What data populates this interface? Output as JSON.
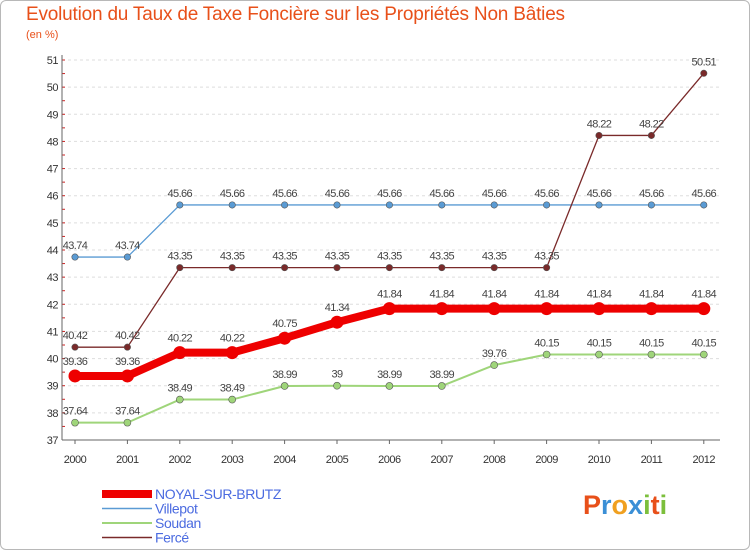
{
  "header": {
    "title": "Evolution du Taux de Taxe Foncière sur les Propriétés Non Bâties",
    "unit": "(en %)"
  },
  "logo": {
    "text": "Proxiti",
    "colors": [
      "#e8501a",
      "#3b8fd6",
      "#f0a020",
      "#3b8fd6",
      "#7cbf3c",
      "#e8501a",
      "#7cbf3c"
    ]
  },
  "chart_data": {
    "type": "line",
    "title": "Evolution du Taux de Taxe Foncière sur les Propriétés Non Bâties",
    "ylabel": "(en %)",
    "xlabel": "",
    "x": [
      "2000",
      "2001",
      "2002",
      "2003",
      "2004",
      "2005",
      "2006",
      "2007",
      "2008",
      "2009",
      "2010",
      "2011",
      "2012"
    ],
    "ylim": [
      37,
      51
    ],
    "yticks": [
      37,
      38,
      39,
      40,
      41,
      42,
      43,
      44,
      45,
      46,
      47,
      48,
      49,
      50,
      51
    ],
    "grid": "horizontal dashed",
    "legend_position": "bottom-left",
    "series": [
      {
        "name": "Villepot",
        "color": "#5a9bd4",
        "weight": "thin",
        "values": [
          43.74,
          43.74,
          45.66,
          45.66,
          45.66,
          45.66,
          45.66,
          45.66,
          45.66,
          45.66,
          45.66,
          45.66,
          45.66
        ],
        "labels": [
          "43.74",
          "43.74",
          "45.66",
          "45.66",
          "45.66",
          "45.66",
          "45.66",
          "45.66",
          "45.66",
          "45.66",
          "45.66",
          "45.66",
          "45.66"
        ]
      },
      {
        "name": "Soudan",
        "color": "#9fd57a",
        "weight": "medium",
        "values": [
          37.64,
          37.64,
          38.49,
          38.49,
          38.99,
          39,
          38.99,
          38.99,
          39.76,
          40.15,
          40.15,
          40.15,
          40.15
        ],
        "labels": [
          "37.64",
          "37.64",
          "38.49",
          "38.49",
          "38.99",
          "39",
          "38.99",
          "38.99",
          "39.76",
          "40.15",
          "40.15",
          "40.15",
          "40.15"
        ]
      },
      {
        "name": "Fercé",
        "color": "#7a2a2a",
        "weight": "thin",
        "values": [
          40.42,
          40.42,
          43.35,
          43.35,
          43.35,
          43.35,
          43.35,
          43.35,
          43.35,
          43.35,
          48.22,
          48.22,
          50.51
        ],
        "labels": [
          "40.42",
          "40.42",
          "43.35",
          "43.35",
          "43.35",
          "43.35",
          "43.35",
          "43.35",
          "43.35",
          "43.35",
          "48.22",
          "48.22",
          "50.51"
        ]
      },
      {
        "name": "NOYAL-SUR-BRUTZ",
        "color": "#ee0000",
        "weight": "thick",
        "values": [
          39.36,
          39.36,
          40.22,
          40.22,
          40.75,
          41.34,
          41.84,
          41.84,
          41.84,
          41.84,
          41.84,
          41.84,
          41.84
        ],
        "labels": [
          "39.36",
          "39.36",
          "40.22",
          "40.22",
          "40.75",
          "41.34",
          "41.84",
          "41.84",
          "41.84",
          "41.84",
          "41.84",
          "41.84",
          "41.84"
        ]
      }
    ],
    "legend": [
      "NOYAL-SUR-BRUTZ",
      "Villepot",
      "Soudan",
      "Fercé"
    ]
  }
}
